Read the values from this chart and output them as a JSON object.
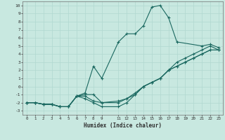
{
  "xlabel": "Humidex (Indice chaleur)",
  "bg_color": "#c8e8e0",
  "grid_color": "#b0d8d0",
  "line_color": "#1a6860",
  "xlim": [
    -0.5,
    23.5
  ],
  "ylim": [
    -3.5,
    10.5
  ],
  "xticks": [
    0,
    1,
    2,
    3,
    4,
    5,
    6,
    7,
    8,
    9,
    11,
    12,
    13,
    14,
    15,
    16,
    17,
    18,
    19,
    20,
    21,
    22,
    23
  ],
  "yticks": [
    -3,
    -2,
    -1,
    0,
    1,
    2,
    3,
    4,
    5,
    6,
    7,
    8,
    9,
    10
  ],
  "line1_x": [
    0,
    1,
    2,
    3,
    4,
    5,
    6,
    7,
    8,
    9,
    11,
    12,
    13,
    14,
    15,
    16,
    17,
    18,
    21,
    22,
    23
  ],
  "line1_y": [
    -2,
    -2,
    -2.2,
    -2.2,
    -2.5,
    -2.5,
    -1.2,
    -0.8,
    2.5,
    1,
    5.5,
    6.5,
    6.5,
    7.5,
    9.8,
    10,
    8.5,
    5.5,
    5,
    5.2,
    4.8
  ],
  "line2_x": [
    0,
    1,
    2,
    3,
    4,
    5,
    6,
    7,
    8,
    9,
    11,
    12,
    13,
    14,
    15,
    16,
    17,
    18,
    19,
    20,
    21,
    22,
    23
  ],
  "line2_y": [
    -2,
    -2,
    -2.2,
    -2.2,
    -2.5,
    -2.5,
    -1.2,
    -1.2,
    -1.8,
    -2,
    -1.8,
    -1.5,
    -0.8,
    0,
    0.5,
    1,
    2,
    3,
    3.5,
    4,
    4.5,
    5,
    4.5
  ],
  "line3_x": [
    0,
    1,
    2,
    3,
    4,
    5,
    6,
    7,
    8,
    9,
    11,
    12,
    13,
    14,
    15,
    16,
    17,
    18,
    19,
    20,
    21,
    22,
    23
  ],
  "line3_y": [
    -2,
    -2,
    -2.2,
    -2.2,
    -2.5,
    -2.5,
    -1.2,
    -1,
    -1,
    -2,
    -2,
    -1.5,
    -1,
    0,
    0.5,
    1,
    2,
    2.5,
    3,
    3.5,
    4,
    4.5,
    4.5
  ],
  "line4_x": [
    0,
    1,
    2,
    3,
    4,
    5,
    6,
    7,
    8,
    9,
    11,
    12,
    13,
    14,
    15,
    16,
    17,
    18,
    19,
    20,
    21,
    22,
    23
  ],
  "line4_y": [
    -2,
    -2,
    -2.2,
    -2.2,
    -2.5,
    -2.5,
    -1.2,
    -1.5,
    -2,
    -2.5,
    -2.5,
    -2,
    -1,
    0,
    0.5,
    1,
    2,
    2.5,
    3,
    3.5,
    4,
    4.5,
    4.5
  ]
}
